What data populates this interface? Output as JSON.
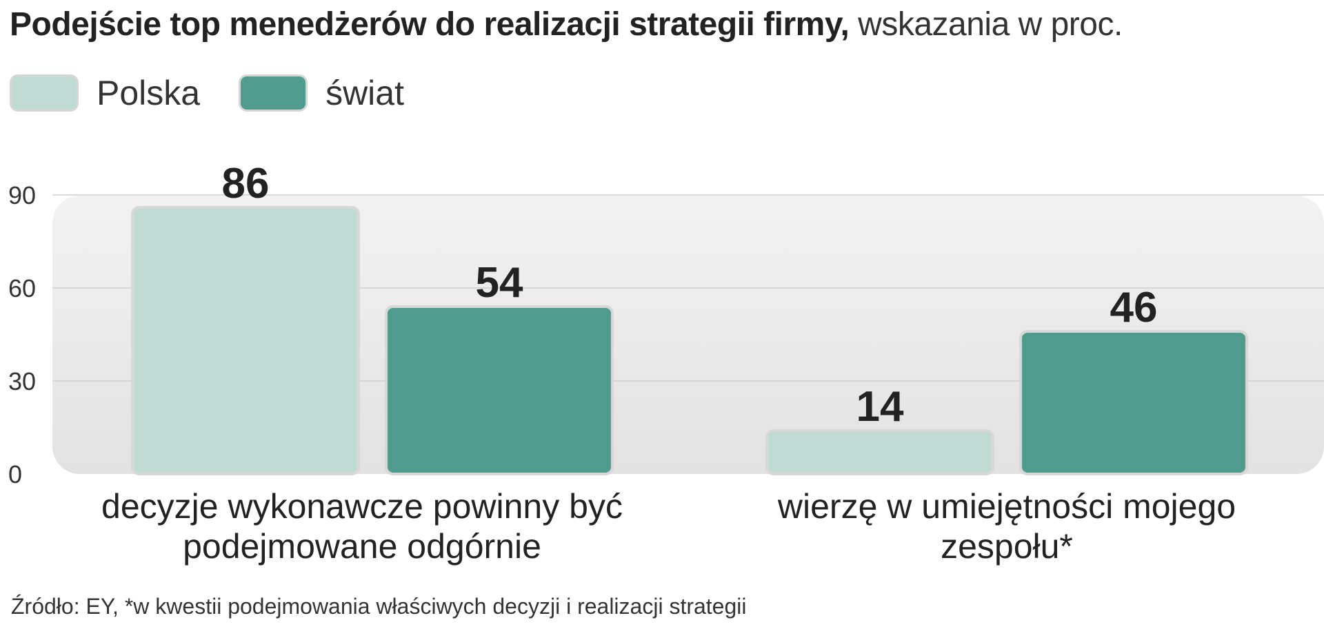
{
  "title": {
    "bold": "Podejście top menedżerów do realizacji strategii firmy,",
    "light": "wskazania w proc."
  },
  "chart_data": {
    "type": "bar",
    "categories": [
      "decyzje wykonawcze powinny być podejmowane odgórnie",
      "wierzę w umiejętności mojego zespołu*"
    ],
    "category_lines": [
      [
        "decyzje wykonawcze powinny być",
        "podejmowane odgórnie"
      ],
      [
        "wierzę w umiejętności mojego",
        "zespołu*"
      ]
    ],
    "series": [
      {
        "name": "Polska",
        "values": [
          86,
          14
        ],
        "color": "#c0dbd4"
      },
      {
        "name": "świat",
        "values": [
          54,
          46
        ],
        "color": "#4f9c8f"
      }
    ],
    "yticks": [
      0,
      30,
      60,
      90
    ],
    "ylim": [
      0,
      90
    ],
    "grid": true,
    "legend_position": "top-left",
    "source": "Źródło: EY, *w kwestii podejmowania właściwych decyzji i realizacji strategii"
  }
}
